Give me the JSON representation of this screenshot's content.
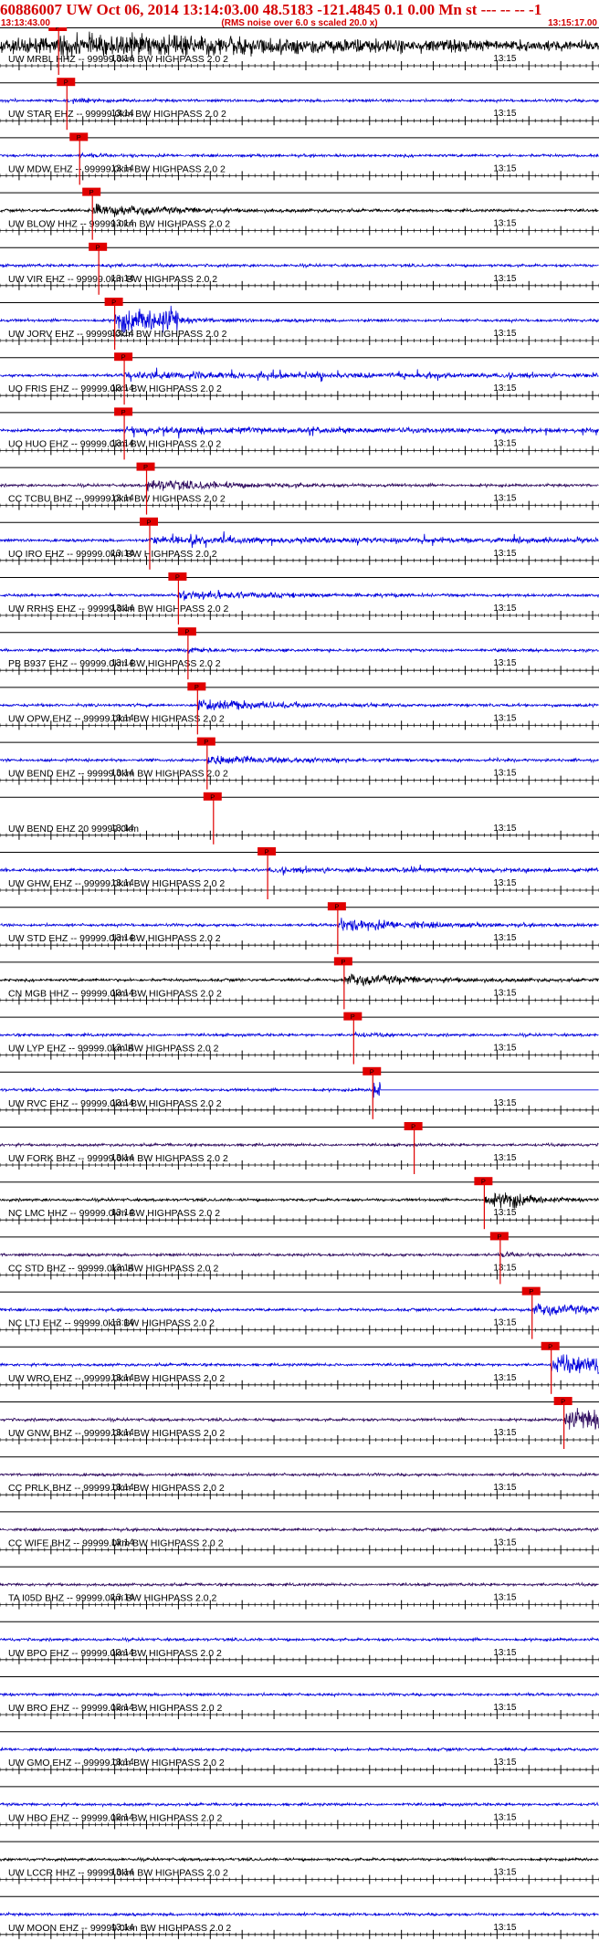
{
  "header": {
    "title": "60886007 UW Oct 06, 2014 13:14:03.00   48.5183 -121.4845  0.1 0.00 Mn st --- -- --  -1",
    "start_time": "13:13:43.00",
    "rms_note": "(RMS noise over 6.0 s scaled 20.0 x)",
    "end_time": "13:15:17.00"
  },
  "colors": {
    "trace_blue": "#0000dd",
    "trace_black": "#000000",
    "trace_purple": "#2e0a5e",
    "pick_red": "#e00000",
    "text_red": "#d40000"
  },
  "chart_data": {
    "type": "line",
    "title": "",
    "x_unit": "time",
    "x_start": "13:13:43.00",
    "x_end": "13:15:17.00",
    "tick_labels": [
      "13:14",
      "13:15"
    ],
    "pick_label": "P",
    "traces": [
      {
        "label": "UW MRBL HHZ -- 99999.0km BW  HIGHPASS  2.0  2",
        "color": "black",
        "pick_s": 9.2,
        "amp": 0.95,
        "event": "long"
      },
      {
        "label": "UW STAR EHZ -- 99999.0km BW  HIGHPASS  2.0  2",
        "color": "blue",
        "pick_s": 10.5,
        "amp": 0.35,
        "event": "short"
      },
      {
        "label": "UW MDW EHZ -- 99999.0km BW  HIGHPASS  2.0  2",
        "color": "blue",
        "pick_s": 12.5,
        "amp": 0.25,
        "event": "short"
      },
      {
        "label": "UW BLOW HHZ -- 99999.0km BW  HIGHPASS  2.0  2",
        "color": "black",
        "pick_s": 14.5,
        "amp": 0.75,
        "event": "medium"
      },
      {
        "label": "UW VIR EHZ -- 99999.0km BW  HIGHPASS  2.0  2",
        "color": "blue",
        "pick_s": 15.5,
        "amp": 0.25,
        "event": "short"
      },
      {
        "label": "UW JORV EHZ -- 99999.0km BW  HIGHPASS  2.0  2",
        "color": "blue",
        "pick_s": 18.0,
        "amp": 0.95,
        "event": "block"
      },
      {
        "label": "UO FRIS EHZ -- 99999.0km BW  HIGHPASS  2.0  2",
        "color": "blue",
        "pick_s": 19.5,
        "amp": 0.9,
        "event": "spiky"
      },
      {
        "label": "UO HUO EHZ -- 99999.0km BW  HIGHPASS  2.0  2",
        "color": "blue",
        "pick_s": 19.5,
        "amp": 0.85,
        "event": "spiky"
      },
      {
        "label": "CC TCBU BHZ -- 99999.0km BW  HIGHPASS  2.0  2",
        "color": "purple",
        "pick_s": 23.0,
        "amp": 0.7,
        "event": "medium"
      },
      {
        "label": "UO IRO EHZ -- 99999.0km BW  HIGHPASS  2.0  2",
        "color": "blue",
        "pick_s": 23.5,
        "amp": 0.9,
        "event": "spiky"
      },
      {
        "label": "UW RRHS EHZ -- 99999.0km BW  HIGHPASS  2.0  2",
        "color": "blue",
        "pick_s": 28.0,
        "amp": 0.6,
        "event": "medium"
      },
      {
        "label": "PB B937 EHZ -- 99999.0km BW  HIGHPASS  2.0  2",
        "color": "blue",
        "pick_s": 29.5,
        "amp": 0.4,
        "event": "short"
      },
      {
        "label": "UW OPW EHZ -- 99999.0km BW  HIGHPASS  2.0  2",
        "color": "blue",
        "pick_s": 31.0,
        "amp": 0.7,
        "event": "medium"
      },
      {
        "label": "UW BEND EHZ -- 99999.0km BW  HIGHPASS  2.0  2",
        "color": "blue",
        "pick_s": 32.5,
        "amp": 0.6,
        "event": "medium"
      },
      {
        "label": "UW BEND EHZ 20 99999.0km",
        "color": "none",
        "pick_s": 33.5,
        "amp": 0.0,
        "event": "none"
      },
      {
        "label": "UW GHW EHZ -- 99999.0km BW  HIGHPASS  2.0  2",
        "color": "blue",
        "pick_s": 42.0,
        "amp": 0.45,
        "event": "spiky"
      },
      {
        "label": "UW STD EHZ -- 99999.0km BW  HIGHPASS  2.0  2",
        "color": "blue",
        "pick_s": 53.0,
        "amp": 0.75,
        "event": "medium"
      },
      {
        "label": "CN MGB HHZ -- 99999.0km BW  HIGHPASS  2.0  2",
        "color": "black",
        "pick_s": 54.0,
        "amp": 0.7,
        "event": "medium"
      },
      {
        "label": "UW LYP EHZ -- 99999.0km BW  HIGHPASS  2.0  2",
        "color": "blue",
        "pick_s": 55.5,
        "amp": 0.35,
        "event": "short"
      },
      {
        "label": "UW RVC EHZ -- 99999.0km BW  HIGHPASS  2.0  2",
        "color": "blue",
        "pick_s": 58.5,
        "amp": 0.95,
        "event": "dead"
      },
      {
        "label": "UW FORK BHZ -- 99999.0km BW  HIGHPASS  2.0  2",
        "color": "purple",
        "pick_s": 65.0,
        "amp": 0.25,
        "event": "none"
      },
      {
        "label": "NC LMC HHZ -- 99999.0km BW  HIGHPASS  2.0  2",
        "color": "black",
        "pick_s": 76.0,
        "amp": 0.95,
        "event": "burst"
      },
      {
        "label": "CC STD BHZ -- 99999.0km BW  HIGHPASS  2.0  2",
        "color": "purple",
        "pick_s": 78.5,
        "amp": 0.35,
        "event": "short"
      },
      {
        "label": "NC LTJ EHZ -- 99999.0km BW  HIGHPASS  2.0  2",
        "color": "blue",
        "pick_s": 83.5,
        "amp": 0.7,
        "event": "medium"
      },
      {
        "label": "UW WRO EHZ -- 99999.0km BW  HIGHPASS  2.0  2",
        "color": "blue",
        "pick_s": 86.5,
        "amp": 0.85,
        "event": "end"
      },
      {
        "label": "UW GNW BHZ -- 99999.0km BW  HIGHPASS  2.0  2",
        "color": "purple",
        "pick_s": 88.5,
        "amp": 0.9,
        "event": "end"
      },
      {
        "label": "CC PRLK BHZ -- 99999.0km BW  HIGHPASS  2.0  2",
        "color": "purple",
        "pick_s": null,
        "amp": 0.15,
        "event": "none"
      },
      {
        "label": "CC WIFE BHZ -- 99999.0km BW  HIGHPASS  2.0  2",
        "color": "purple",
        "pick_s": null,
        "amp": 0.15,
        "event": "none"
      },
      {
        "label": "TA I05D BHZ -- 99999.0km BW  HIGHPASS  2.0  2",
        "color": "purple",
        "pick_s": null,
        "amp": 0.25,
        "event": "none"
      },
      {
        "label": "UW BPO EHZ -- 99999.0km BW  HIGHPASS  2.0  2",
        "color": "blue",
        "pick_s": null,
        "amp": 0.25,
        "event": "none"
      },
      {
        "label": "UW BRO EHZ -- 99999.0km BW  HIGHPASS  2.0  2",
        "color": "blue",
        "pick_s": null,
        "amp": 0.3,
        "event": "none"
      },
      {
        "label": "UW GMO EHZ -- 99999.0km BW  HIGHPASS  2.0  2",
        "color": "blue",
        "pick_s": null,
        "amp": 0.2,
        "event": "none"
      },
      {
        "label": "UW HBO EHZ -- 99999.0km BW  HIGHPASS  2.0  2",
        "color": "blue",
        "pick_s": null,
        "amp": 0.2,
        "event": "none"
      },
      {
        "label": "UW LCCR HHZ -- 99999.0km BW  HIGHPASS  2.0  2",
        "color": "black",
        "pick_s": null,
        "amp": 0.3,
        "event": "none"
      },
      {
        "label": "UW MOON EHZ -- 99999.0km BW  HIGHPASS  2.0  2",
        "color": "blue",
        "pick_s": null,
        "amp": 0.2,
        "event": "none"
      }
    ]
  }
}
